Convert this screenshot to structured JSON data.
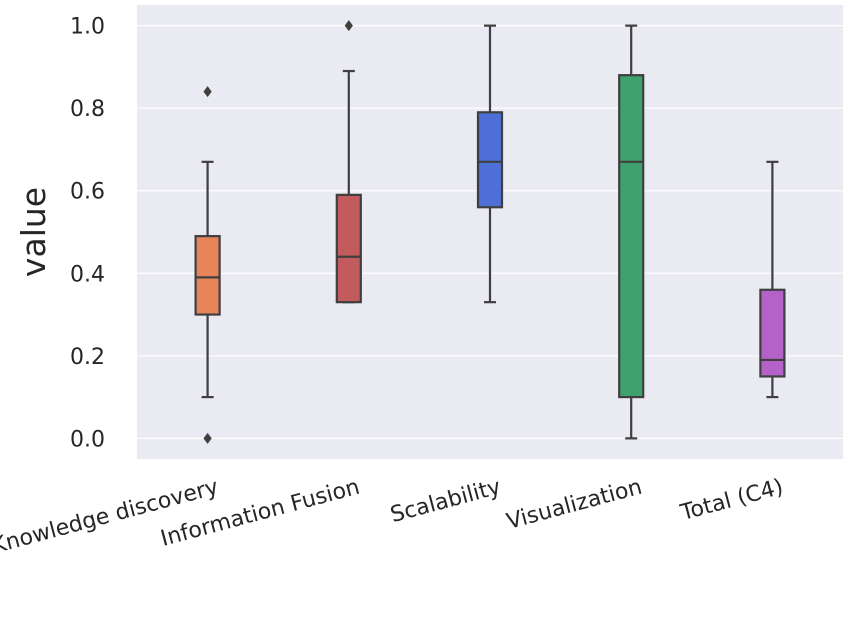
{
  "chart_data": {
    "type": "box",
    "title": "",
    "xlabel": "",
    "ylabel": "value",
    "ylim": [
      -0.05,
      1.05
    ],
    "yticks": [
      "0.0",
      "0.2",
      "0.4",
      "0.6",
      "0.8",
      "1.0"
    ],
    "grid": true,
    "categories": [
      "Knowledge discovery",
      "Information Fusion",
      "Scalability",
      "Visualization",
      "Total (C4)"
    ],
    "boxes": [
      {
        "category": "Knowledge discovery",
        "color": "#e8845a",
        "whislo": 0.1,
        "q1": 0.3,
        "med": 0.39,
        "q3": 0.49,
        "whishi": 0.67,
        "fliers": [
          0.0,
          0.84
        ]
      },
      {
        "category": "Information Fusion",
        "color": "#c15b5e",
        "whislo": 0.33,
        "q1": 0.33,
        "med": 0.44,
        "q3": 0.59,
        "whishi": 0.89,
        "fliers": [
          1.0
        ]
      },
      {
        "category": "Scalability",
        "color": "#4e6fd8",
        "whislo": 0.33,
        "q1": 0.56,
        "med": 0.67,
        "q3": 0.79,
        "whishi": 1.0,
        "fliers": []
      },
      {
        "category": "Visualization",
        "color": "#3ea26e",
        "whislo": 0.0,
        "q1": 0.1,
        "med": 0.67,
        "q3": 0.88,
        "whishi": 1.0,
        "fliers": []
      },
      {
        "category": "Total (C4)",
        "color": "#b462c8",
        "whislo": 0.1,
        "q1": 0.15,
        "med": 0.19,
        "q3": 0.36,
        "whishi": 0.67,
        "fliers": []
      }
    ]
  },
  "colors": {
    "plot_background": "#eaeaf2",
    "grid": "#ffffff",
    "line": "#3f3f3f",
    "text": "#262626"
  }
}
